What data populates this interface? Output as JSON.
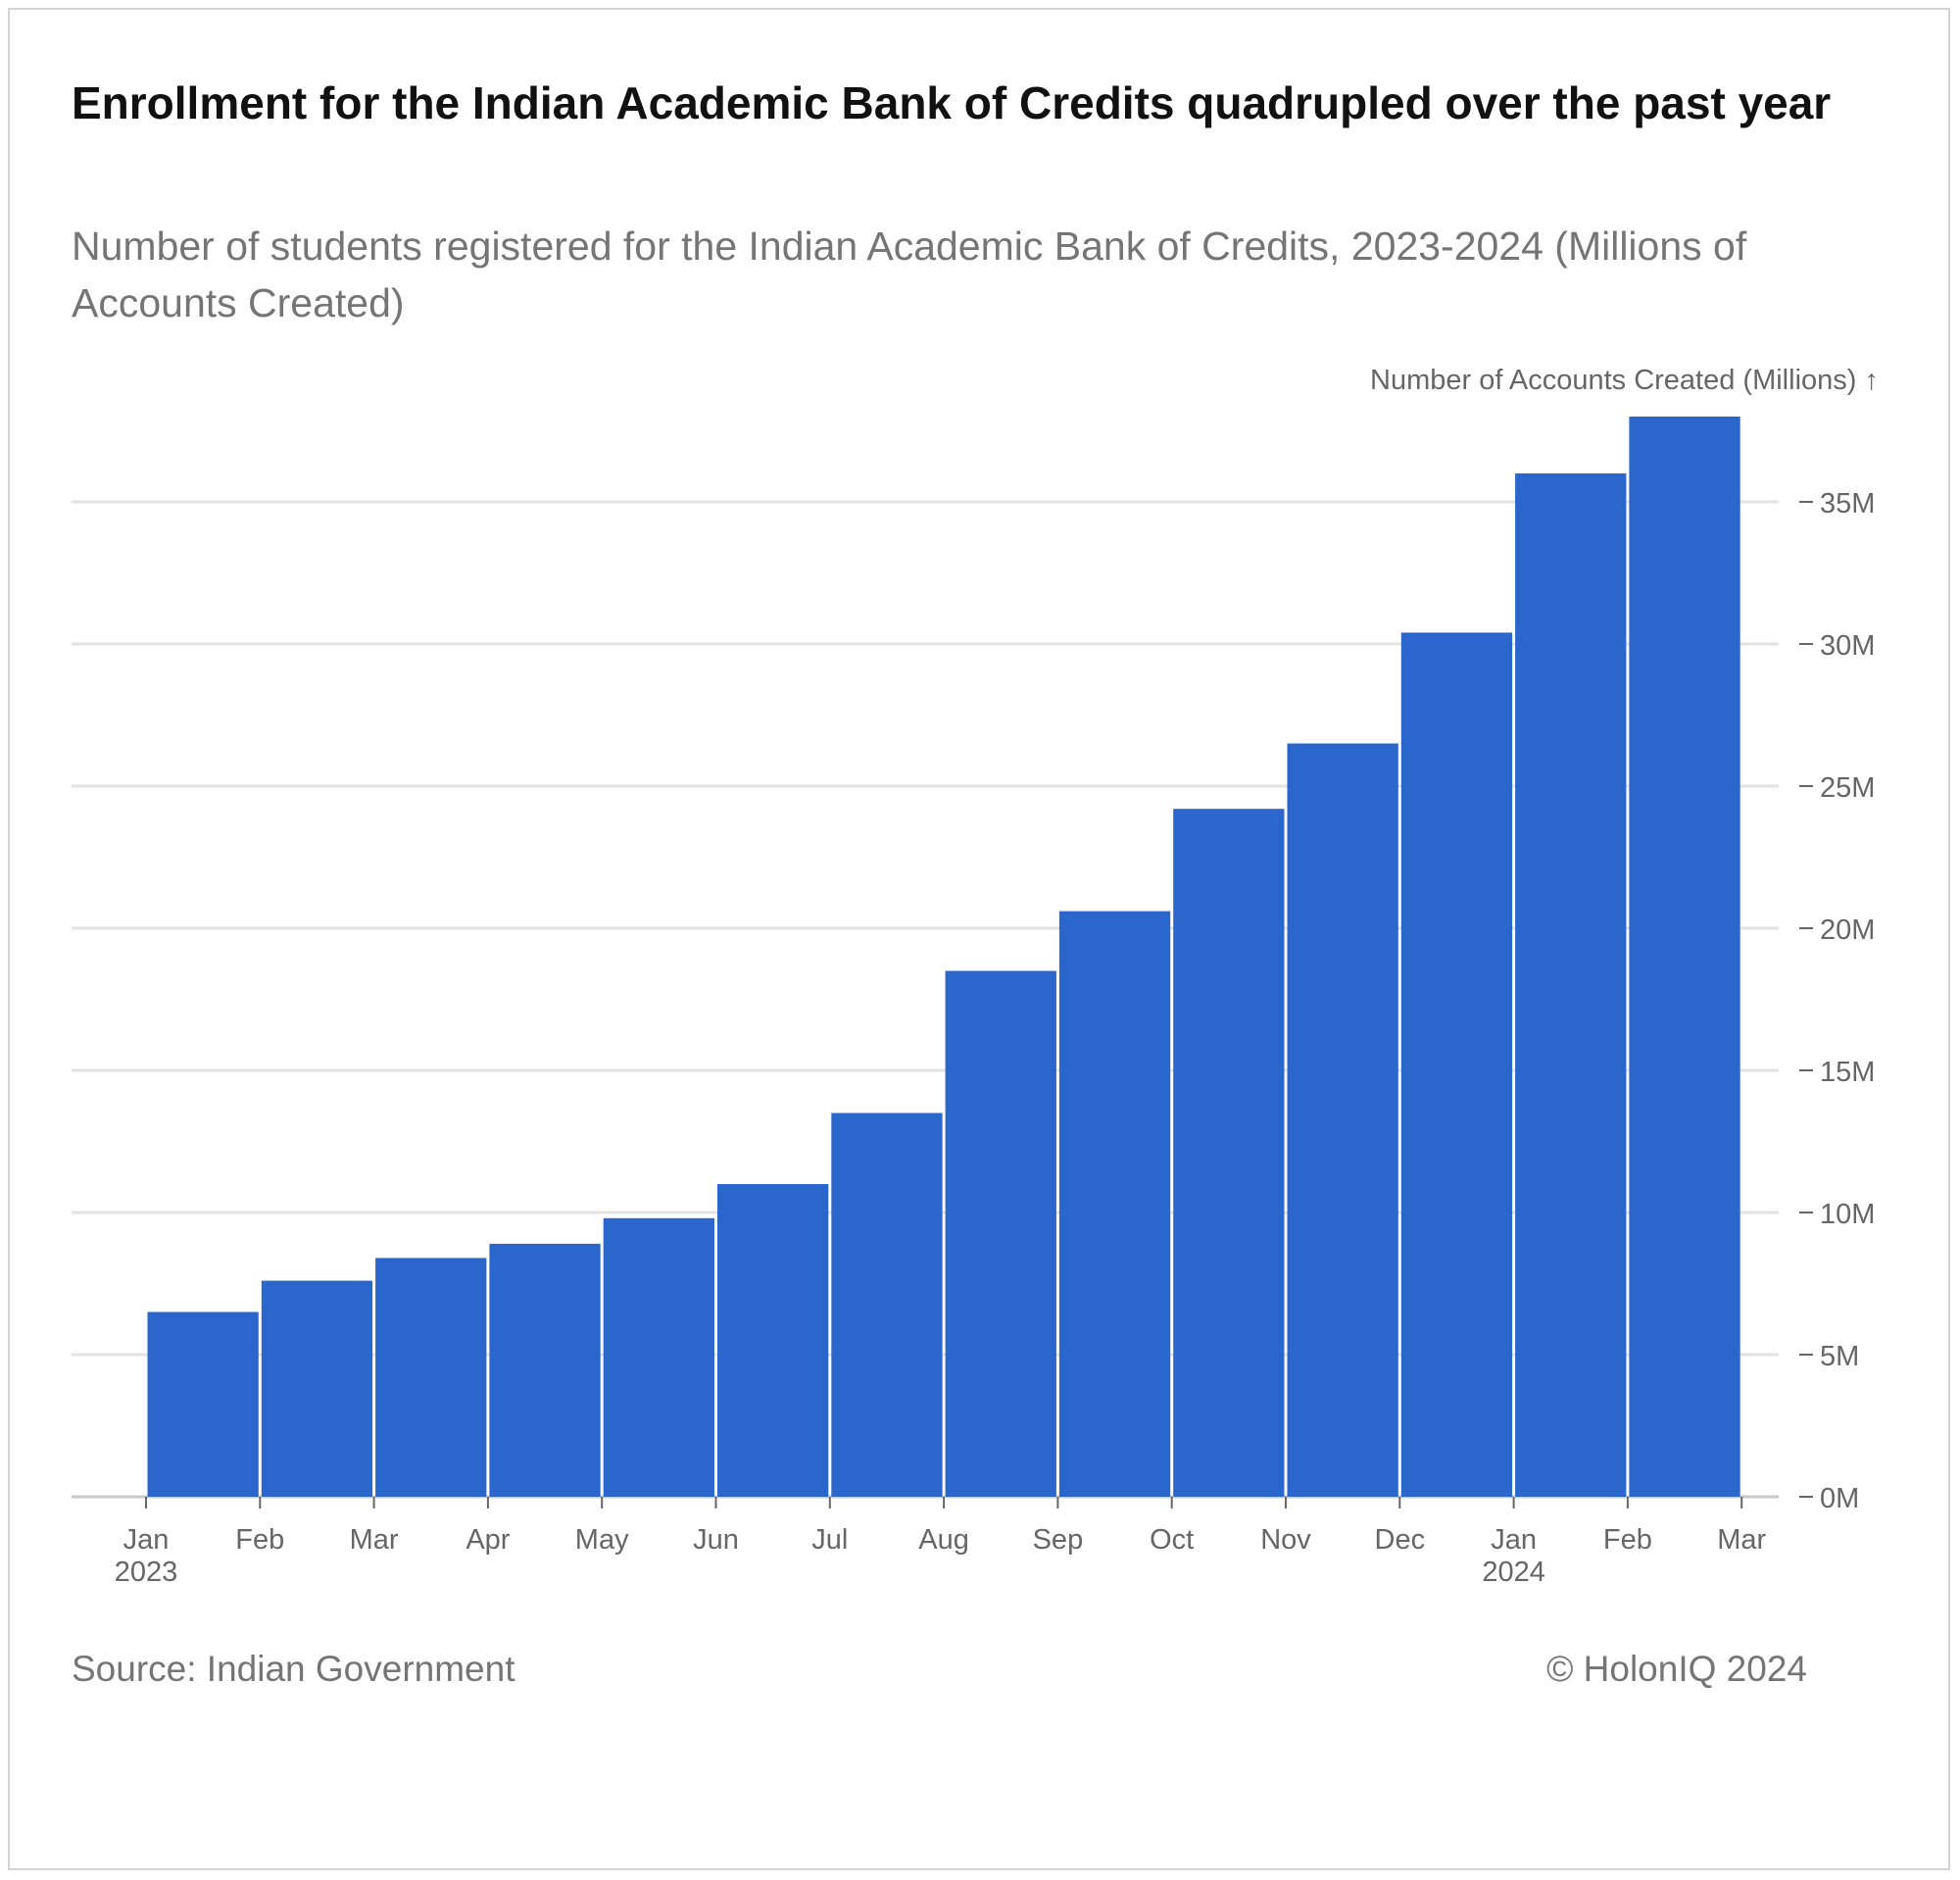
{
  "header": {
    "title": "Enrollment for the Indian Academic Bank of Credits quadrupled over the past year",
    "subtitle": "Number of students registered for the Indian Academic Bank of Credits, 2023-2024 (Millions of Accounts Created)"
  },
  "footer": {
    "source": "Source: Indian Government",
    "copyright": "© HolonIQ 2024"
  },
  "colors": {
    "bar": "#2a66cc",
    "grid": "#e3e3e3",
    "axis_text": "#666666"
  },
  "chart_data": {
    "type": "bar",
    "title": "Enrollment for the Indian Academic Bank of Credits quadrupled over the past year",
    "subtitle": "Number of students registered for the Indian Academic Bank of Credits, 2023-2024 (Millions of Accounts Created)",
    "ylabel": "Number of Accounts Created (Millions) ↑",
    "xlabel": "",
    "x_ticks": [
      {
        "month": "Jan",
        "year": "2023"
      },
      {
        "month": "Feb",
        "year": ""
      },
      {
        "month": "Mar",
        "year": ""
      },
      {
        "month": "Apr",
        "year": ""
      },
      {
        "month": "May",
        "year": ""
      },
      {
        "month": "Jun",
        "year": ""
      },
      {
        "month": "Jul",
        "year": ""
      },
      {
        "month": "Aug",
        "year": ""
      },
      {
        "month": "Sep",
        "year": ""
      },
      {
        "month": "Oct",
        "year": ""
      },
      {
        "month": "Nov",
        "year": ""
      },
      {
        "month": "Dec",
        "year": ""
      },
      {
        "month": "Jan",
        "year": "2024"
      },
      {
        "month": "Feb",
        "year": ""
      },
      {
        "month": "Mar",
        "year": ""
      }
    ],
    "categories": [
      "Jan 2023",
      "Feb 2023",
      "Mar 2023",
      "Apr 2023",
      "May 2023",
      "Jun 2023",
      "Jul 2023",
      "Aug 2023",
      "Sep 2023",
      "Oct 2023",
      "Nov 2023",
      "Dec 2023",
      "Jan 2024",
      "Feb 2024"
    ],
    "values": [
      6.5,
      7.6,
      8.4,
      8.9,
      9.8,
      11.0,
      13.5,
      18.5,
      20.6,
      24.2,
      26.5,
      30.4,
      36.0,
      38.0
    ],
    "y_ticks": [
      0,
      5,
      10,
      15,
      20,
      25,
      30,
      35
    ],
    "y_tick_labels": [
      "0M",
      "5M",
      "10M",
      "15M",
      "20M",
      "25M",
      "30M",
      "35M"
    ],
    "ylim": [
      0,
      38
    ],
    "grid": true,
    "y_axis_position": "right"
  }
}
